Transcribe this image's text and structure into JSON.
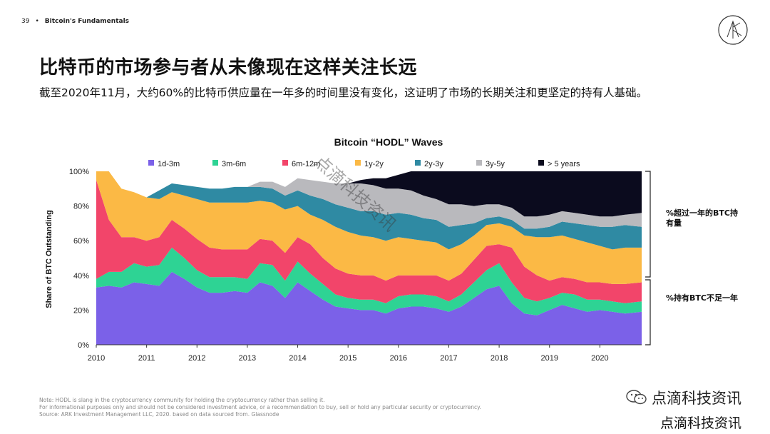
{
  "header": {
    "page_number": "39",
    "section": "Bitcoin's Fundamentals"
  },
  "title": "比特币的市场参与者从未像现在这样关注长远",
  "subtitle": "截至2020年11月，大约60%的比特币供应量在一年多的时间里没有变化，这证明了市场的长期关注和更坚定的持有人基础。",
  "annotations": {
    "above": "%超过一年的BTC持有量",
    "below": "%持有BTC不足一年"
  },
  "notes": [
    "Note: HODL is slang in the cryptocurrency community for holding the cryptocurrency rather than selling it.",
    "For informational purposes only and should not be considered investment advice, or a recommendation to buy, sell or hold any particular security or cryptocurrency.",
    "Source: ARK Investment Management LLC, 2020. based on data sourced from. Glassnode"
  ],
  "watermark": {
    "brand": "点滴科技资讯",
    "brand2": "点滴科技资讯",
    "diagonal": "点滴科技资讯"
  },
  "colors": [
    "#7b61e8",
    "#2ed394",
    "#f2456a",
    "#fbb945",
    "#2f8aa3",
    "#b9b9bd",
    "#0b0b1e"
  ],
  "chart_data": {
    "type": "area",
    "stacked": true,
    "title": "Bitcoin “HODL” Waves",
    "xlabel": "",
    "ylabel": "Share of BTC Outstanding",
    "xlim": [
      2010,
      2020.83
    ],
    "ylim": [
      0,
      100
    ],
    "x_ticks": [
      "2010",
      "2011",
      "2012",
      "2013",
      "2014",
      "2015",
      "2016",
      "2017",
      "2018",
      "2019",
      "2020"
    ],
    "y_ticks": [
      "0%",
      "20%",
      "40%",
      "60%",
      "80%",
      "100%"
    ],
    "x": [
      2010.0,
      2010.25,
      2010.5,
      2010.75,
      2011.0,
      2011.25,
      2011.5,
      2011.75,
      2012.0,
      2012.25,
      2012.5,
      2012.75,
      2013.0,
      2013.25,
      2013.5,
      2013.75,
      2014.0,
      2014.25,
      2014.5,
      2014.75,
      2015.0,
      2015.25,
      2015.5,
      2015.75,
      2016.0,
      2016.25,
      2016.5,
      2016.75,
      2017.0,
      2017.25,
      2017.5,
      2017.75,
      2018.0,
      2018.25,
      2018.5,
      2018.75,
      2019.0,
      2019.25,
      2019.5,
      2019.75,
      2020.0,
      2020.25,
      2020.5,
      2020.83
    ],
    "series": [
      {
        "name": "1d-3m",
        "values": [
          33,
          34,
          33,
          36,
          35,
          34,
          42,
          38,
          33,
          30,
          30,
          31,
          30,
          36,
          34,
          27,
          36,
          31,
          26,
          22,
          21,
          20,
          20,
          18,
          21,
          22,
          22,
          21,
          19,
          22,
          27,
          32,
          34,
          24,
          18,
          17,
          20,
          23,
          21,
          19,
          20,
          19,
          18,
          19
        ]
      },
      {
        "name": "3m-6m",
        "values": [
          5,
          8,
          9,
          11,
          10,
          12,
          14,
          12,
          10,
          9,
          9,
          8,
          8,
          11,
          12,
          10,
          12,
          10,
          9,
          7,
          6,
          6,
          6,
          6,
          7,
          7,
          7,
          7,
          6,
          7,
          9,
          11,
          13,
          12,
          9,
          8,
          7,
          7,
          8,
          7,
          6,
          6,
          6,
          6
        ]
      },
      {
        "name": "6m-12m",
        "values": [
          57,
          30,
          20,
          15,
          15,
          16,
          16,
          17,
          18,
          17,
          16,
          16,
          17,
          14,
          14,
          16,
          14,
          17,
          15,
          15,
          14,
          14,
          14,
          13,
          12,
          11,
          11,
          12,
          12,
          12,
          13,
          14,
          11,
          20,
          18,
          15,
          10,
          9,
          9,
          10,
          10,
          10,
          11,
          11
        ]
      },
      {
        "name": "1y-2y",
        "values": [
          5,
          28,
          28,
          26,
          25,
          22,
          16,
          19,
          23,
          26,
          27,
          27,
          27,
          22,
          22,
          25,
          18,
          17,
          22,
          24,
          24,
          23,
          22,
          23,
          22,
          21,
          20,
          19,
          18,
          17,
          14,
          12,
          12,
          12,
          18,
          22,
          25,
          24,
          23,
          23,
          21,
          20,
          21,
          20
        ]
      },
      {
        "name": "2y-3y",
        "values": [
          0,
          0,
          0,
          0,
          0,
          5,
          5,
          6,
          7,
          8,
          8,
          9,
          9,
          8,
          8,
          8,
          9,
          11,
          12,
          13,
          14,
          14,
          15,
          15,
          14,
          14,
          13,
          13,
          13,
          11,
          7,
          4,
          4,
          4,
          4,
          5,
          6,
          8,
          9,
          10,
          11,
          13,
          13,
          12
        ]
      },
      {
        "name": "3y-5y",
        "values": [
          0,
          0,
          0,
          0,
          0,
          0,
          0,
          0,
          0,
          0,
          0,
          0,
          0,
          3,
          4,
          5,
          7,
          9,
          10,
          12,
          14,
          16,
          15,
          15,
          14,
          14,
          13,
          12,
          13,
          12,
          10,
          8,
          7,
          7,
          7,
          7,
          7,
          6,
          6,
          6,
          6,
          6,
          6,
          8
        ]
      },
      {
        "name": "> 5 years",
        "values": [
          0,
          0,
          0,
          0,
          0,
          0,
          0,
          0,
          0,
          0,
          0,
          0,
          0,
          0,
          0,
          0,
          0,
          0,
          0,
          0,
          0,
          2,
          4,
          6,
          8,
          11,
          14,
          16,
          19,
          19,
          20,
          19,
          19,
          21,
          26,
          26,
          25,
          23,
          24,
          25,
          26,
          26,
          25,
          24
        ]
      }
    ]
  }
}
